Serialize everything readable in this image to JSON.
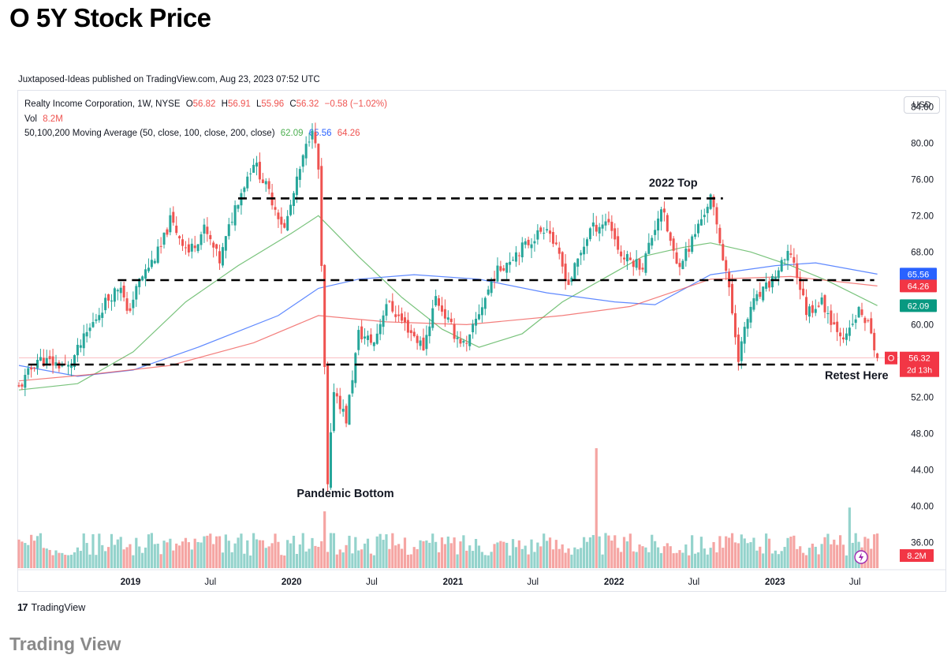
{
  "page": {
    "title": "O 5Y Stock Price",
    "caption": "Trading View"
  },
  "publish_line": "Juxtaposed-Ideas published on TradingView.com, Aug 23, 2023 07:52 UTC",
  "header": {
    "symbol_text": "Realty Income Corporation, 1W, NYSE",
    "ohlc": {
      "open_label": "O",
      "open": "56.82",
      "high_label": "H",
      "high": "56.91",
      "low_label": "L",
      "low": "55.96",
      "close_label": "C",
      "close": "56.32",
      "change": "−0.58 (−1.02%)"
    },
    "vol_label": "Vol",
    "vol_value": "8.2M",
    "ma_label": "50,100,200 Moving Average (50, close, 100, close, 200, close)",
    "ma50": "62.09",
    "ma100": "65.56",
    "ma200": "64.26"
  },
  "currency": "USD",
  "footer_logo": "TradingView",
  "colors": {
    "up": "#26a69a",
    "down": "#ef5350",
    "up_vol": "#94d3cc",
    "down_vol": "#f5a5a3",
    "ma50": "#4caf50",
    "ma100": "#2962ff",
    "ma200": "#ef5350",
    "last_price": "#f23645"
  },
  "chart_data": {
    "type": "candlestick",
    "title": "Realty Income Corporation, 1W, NYSE",
    "interval": "1W",
    "price_axis": {
      "ticks": [
        "84.00",
        "80.00",
        "76.00",
        "72.00",
        "68.00",
        "64.00",
        "60.00",
        "56.00",
        "52.00",
        "48.00",
        "44.00",
        "40.00",
        "36.00"
      ],
      "range": [
        33.0,
        85.5
      ],
      "side": "right"
    },
    "time_axis": {
      "labels": [
        {
          "text": "2019",
          "date": "2019-01-01",
          "bold": true
        },
        {
          "text": "Jul",
          "date": "2019-07-01",
          "bold": false
        },
        {
          "text": "2020",
          "date": "2020-01-01",
          "bold": true
        },
        {
          "text": "Jul",
          "date": "2020-07-01",
          "bold": false
        },
        {
          "text": "2021",
          "date": "2021-01-01",
          "bold": true
        },
        {
          "text": "Jul",
          "date": "2021-07-01",
          "bold": false
        },
        {
          "text": "2022",
          "date": "2022-01-01",
          "bold": true
        },
        {
          "text": "Jul",
          "date": "2022-07-01",
          "bold": false
        },
        {
          "text": "2023",
          "date": "2023-01-01",
          "bold": true
        },
        {
          "text": "Jul",
          "date": "2023-07-01",
          "bold": false
        }
      ],
      "range": [
        "2018-04-23",
        "2023-10-09"
      ]
    },
    "price_path": [
      {
        "date": "2018-04-23",
        "price": 53.0
      },
      {
        "date": "2018-06-04",
        "price": 56.2
      },
      {
        "date": "2018-08-13",
        "price": 55.3
      },
      {
        "date": "2018-09-24",
        "price": 59.0
      },
      {
        "date": "2018-11-05",
        "price": 62.5
      },
      {
        "date": "2018-12-10",
        "price": 64.5
      },
      {
        "date": "2018-12-24",
        "price": 61.0
      },
      {
        "date": "2019-01-21",
        "price": 64.8
      },
      {
        "date": "2019-03-11",
        "price": 68.5
      },
      {
        "date": "2019-04-01",
        "price": 71.5
      },
      {
        "date": "2019-05-13",
        "price": 68.0
      },
      {
        "date": "2019-06-17",
        "price": 70.5
      },
      {
        "date": "2019-07-22",
        "price": 67.0
      },
      {
        "date": "2019-08-26",
        "price": 73.0
      },
      {
        "date": "2019-10-07",
        "price": 78.0
      },
      {
        "date": "2019-11-11",
        "price": 74.5
      },
      {
        "date": "2019-12-16",
        "price": 70.5
      },
      {
        "date": "2020-01-20",
        "price": 77.0
      },
      {
        "date": "2020-02-17",
        "price": 82.0
      },
      {
        "date": "2020-03-02",
        "price": 77.0
      },
      {
        "date": "2020-03-16",
        "price": 55.0
      },
      {
        "date": "2020-03-23",
        "price": 42.0
      },
      {
        "date": "2020-04-06",
        "price": 53.0
      },
      {
        "date": "2020-05-04",
        "price": 49.5
      },
      {
        "date": "2020-06-01",
        "price": 59.0
      },
      {
        "date": "2020-07-06",
        "price": 58.0
      },
      {
        "date": "2020-08-03",
        "price": 62.5
      },
      {
        "date": "2020-09-14",
        "price": 60.0
      },
      {
        "date": "2020-10-26",
        "price": 57.5
      },
      {
        "date": "2020-11-23",
        "price": 63.0
      },
      {
        "date": "2021-01-04",
        "price": 59.0
      },
      {
        "date": "2021-02-01",
        "price": 57.5
      },
      {
        "date": "2021-02-22",
        "price": 60.5
      },
      {
        "date": "2021-04-05",
        "price": 65.5
      },
      {
        "date": "2021-05-24",
        "price": 68.0
      },
      {
        "date": "2021-06-21",
        "price": 69.0
      },
      {
        "date": "2021-08-02",
        "price": 71.0
      },
      {
        "date": "2021-09-20",
        "price": 64.5
      },
      {
        "date": "2021-11-08",
        "price": 70.5
      },
      {
        "date": "2021-12-20",
        "price": 71.5
      },
      {
        "date": "2022-01-17",
        "price": 67.5
      },
      {
        "date": "2022-03-07",
        "price": 66.5
      },
      {
        "date": "2022-04-18",
        "price": 73.0
      },
      {
        "date": "2022-05-23",
        "price": 66.5
      },
      {
        "date": "2022-06-20",
        "price": 68.5
      },
      {
        "date": "2022-08-08",
        "price": 74.0
      },
      {
        "date": "2022-09-12",
        "price": 66.0
      },
      {
        "date": "2022-10-10",
        "price": 56.5
      },
      {
        "date": "2022-11-07",
        "price": 62.0
      },
      {
        "date": "2022-12-12",
        "price": 64.0
      },
      {
        "date": "2023-01-16",
        "price": 66.5
      },
      {
        "date": "2023-02-06",
        "price": 68.0
      },
      {
        "date": "2023-03-13",
        "price": 61.5
      },
      {
        "date": "2023-04-17",
        "price": 62.5
      },
      {
        "date": "2023-05-15",
        "price": 60.0
      },
      {
        "date": "2023-06-12",
        "price": 58.5
      },
      {
        "date": "2023-07-10",
        "price": 61.5
      },
      {
        "date": "2023-07-31",
        "price": 60.0
      },
      {
        "date": "2023-08-21",
        "price": 56.32
      }
    ],
    "moving_averages": [
      {
        "name": "MA50",
        "color": "#4caf50",
        "points": [
          {
            "date": "2018-04-23",
            "price": 52.8
          },
          {
            "date": "2018-09-03",
            "price": 53.5
          },
          {
            "date": "2019-01-07",
            "price": 57.0
          },
          {
            "date": "2019-05-06",
            "price": 62.5
          },
          {
            "date": "2019-09-02",
            "price": 66.5
          },
          {
            "date": "2019-12-30",
            "price": 70.0
          },
          {
            "date": "2020-03-02",
            "price": 72.0
          },
          {
            "date": "2020-06-01",
            "price": 67.5
          },
          {
            "date": "2020-09-07",
            "price": 63.0
          },
          {
            "date": "2020-12-07",
            "price": 59.5
          },
          {
            "date": "2021-03-01",
            "price": 57.5
          },
          {
            "date": "2021-06-07",
            "price": 59.0
          },
          {
            "date": "2021-09-06",
            "price": 62.5
          },
          {
            "date": "2021-12-06",
            "price": 65.0
          },
          {
            "date": "2022-03-07",
            "price": 67.5
          },
          {
            "date": "2022-06-06",
            "price": 68.5
          },
          {
            "date": "2022-08-08",
            "price": 69.0
          },
          {
            "date": "2022-11-07",
            "price": 68.0
          },
          {
            "date": "2023-02-06",
            "price": 66.5
          },
          {
            "date": "2023-05-01",
            "price": 64.8
          },
          {
            "date": "2023-08-21",
            "price": 62.09
          }
        ]
      },
      {
        "name": "MA100",
        "color": "#2962ff",
        "points": [
          {
            "date": "2018-04-23",
            "price": 55.5
          },
          {
            "date": "2018-09-03",
            "price": 54.3
          },
          {
            "date": "2019-01-07",
            "price": 55.0
          },
          {
            "date": "2019-06-03",
            "price": 57.5
          },
          {
            "date": "2019-12-02",
            "price": 61.0
          },
          {
            "date": "2020-03-02",
            "price": 64.0
          },
          {
            "date": "2020-06-01",
            "price": 65.0
          },
          {
            "date": "2020-10-05",
            "price": 65.5
          },
          {
            "date": "2021-03-01",
            "price": 65.0
          },
          {
            "date": "2021-08-02",
            "price": 63.5
          },
          {
            "date": "2022-01-03",
            "price": 62.5
          },
          {
            "date": "2022-04-04",
            "price": 62.2
          },
          {
            "date": "2022-08-08",
            "price": 65.5
          },
          {
            "date": "2023-01-02",
            "price": 66.5
          },
          {
            "date": "2023-04-03",
            "price": 66.8
          },
          {
            "date": "2023-08-21",
            "price": 65.56
          }
        ]
      },
      {
        "name": "MA200",
        "color": "#ef5350",
        "points": [
          {
            "date": "2018-04-23",
            "price": 53.8
          },
          {
            "date": "2018-10-01",
            "price": 54.5
          },
          {
            "date": "2019-04-01",
            "price": 55.5
          },
          {
            "date": "2019-10-07",
            "price": 58.0
          },
          {
            "date": "2020-03-02",
            "price": 61.0
          },
          {
            "date": "2020-08-03",
            "price": 60.3
          },
          {
            "date": "2021-02-01",
            "price": 60.0
          },
          {
            "date": "2021-09-06",
            "price": 61.0
          },
          {
            "date": "2022-02-07",
            "price": 62.0
          },
          {
            "date": "2022-08-08",
            "price": 65.0
          },
          {
            "date": "2023-02-06",
            "price": 65.3
          },
          {
            "date": "2023-08-21",
            "price": 64.26
          }
        ]
      }
    ],
    "horizontal_lines": [
      {
        "price": 73.9,
        "from": "2019-09-02",
        "to": "2022-09-05",
        "style": "dashed"
      },
      {
        "price": 64.9,
        "from": "2018-12-03",
        "to": "2023-08-14",
        "style": "dashed"
      },
      {
        "price": 55.6,
        "from": "2018-05-14",
        "to": "2023-08-21",
        "style": "dashed"
      }
    ],
    "annotations": [
      {
        "text": "2022 Top",
        "date": "2022-03-21",
        "price": 75.2
      },
      {
        "text": "Pandemic Bottom",
        "date": "2020-01-13",
        "price": 41.0
      },
      {
        "text": "Retest Here",
        "date": "2023-04-24",
        "price": 54.0
      }
    ],
    "last_price": {
      "value": "56.32",
      "label": "O",
      "countdown": "2d 13h"
    },
    "axis_badges": [
      {
        "value": "65.56",
        "color": "#2962ff"
      },
      {
        "value": "64.26",
        "color": "#f23645"
      },
      {
        "value": "62.09",
        "color": "#089981"
      }
    ],
    "volume": {
      "last": "8.2M",
      "spikes": [
        {
          "date": "2021-11-22",
          "rel": 0.95
        },
        {
          "date": "2020-03-16",
          "rel": 0.45
        },
        {
          "date": "2023-06-19",
          "rel": 0.48
        }
      ]
    }
  }
}
